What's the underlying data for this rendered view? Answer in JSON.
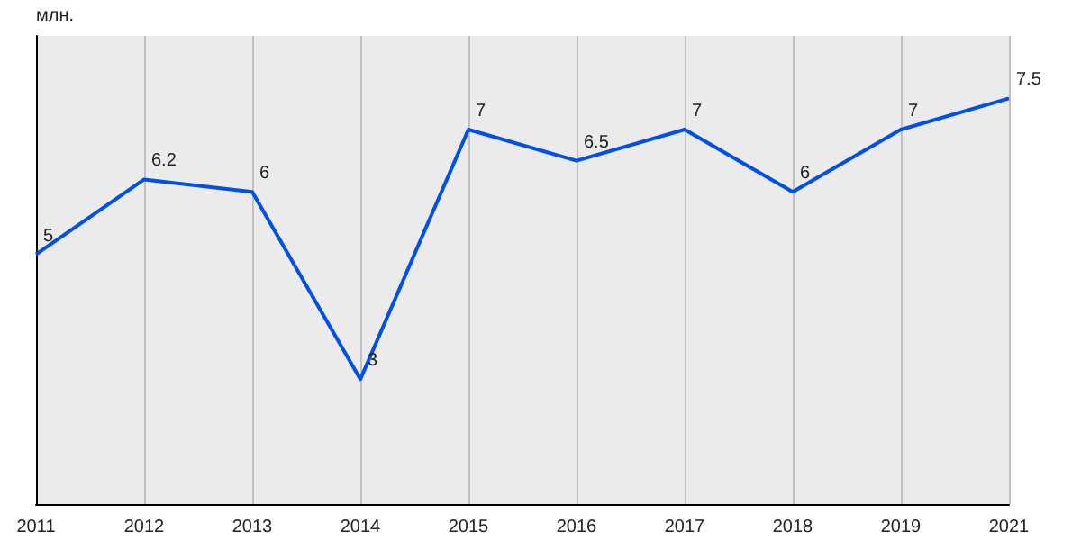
{
  "chart_data": {
    "type": "line",
    "ylabel": "млн.",
    "categories": [
      "2011",
      "2012",
      "2013",
      "2014",
      "2015",
      "2016",
      "2017",
      "2018",
      "2019",
      "2021"
    ],
    "series": [
      {
        "color": "#0050e6",
        "values": [
          5,
          6.2,
          6,
          3,
          7,
          6.5,
          7,
          6,
          7,
          7.5
        ]
      }
    ],
    "ylim": [
      1,
      8.5
    ],
    "data_labels": true,
    "grid": "x",
    "tick_labels": "x",
    "marker": "none",
    "line_style": "solid"
  }
}
